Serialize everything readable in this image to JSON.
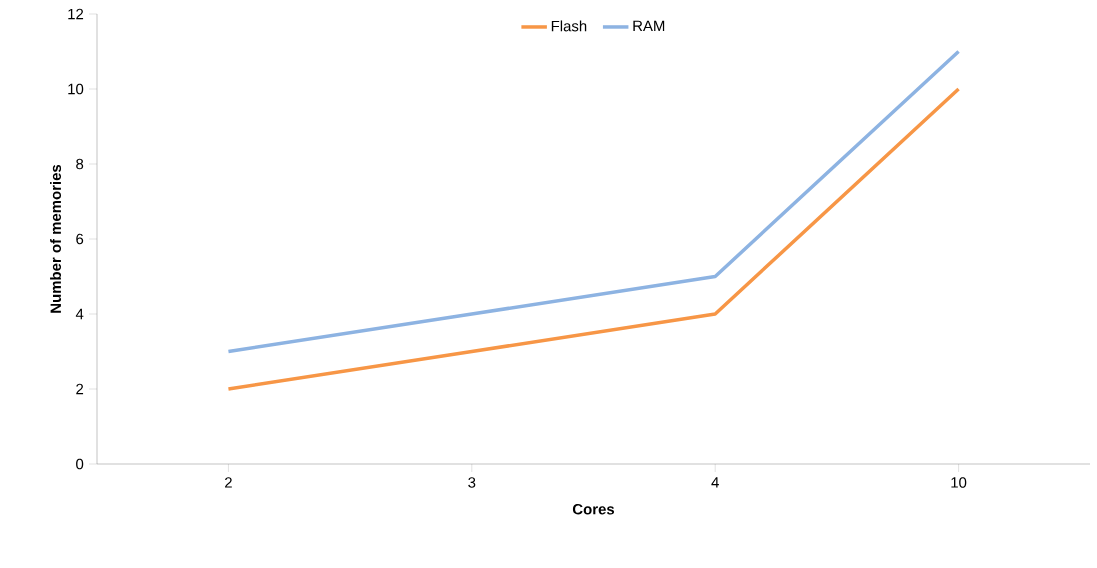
{
  "chart_data": {
    "type": "line",
    "xlabel": "Cores",
    "ylabel": "Number of memories",
    "categories": [
      "2",
      "3",
      "4",
      "10"
    ],
    "series": [
      {
        "name": "Flash",
        "color": "#f79646",
        "values": [
          2,
          3,
          4,
          10
        ]
      },
      {
        "name": "RAM",
        "color": "#8db3e2",
        "values": [
          3,
          4,
          5,
          11
        ]
      }
    ],
    "ylim": [
      0,
      12
    ],
    "yticks": [
      0,
      2,
      4,
      6,
      8,
      10,
      12
    ],
    "grid": false,
    "legend": "top",
    "marker": "none",
    "line_style": "solid"
  }
}
